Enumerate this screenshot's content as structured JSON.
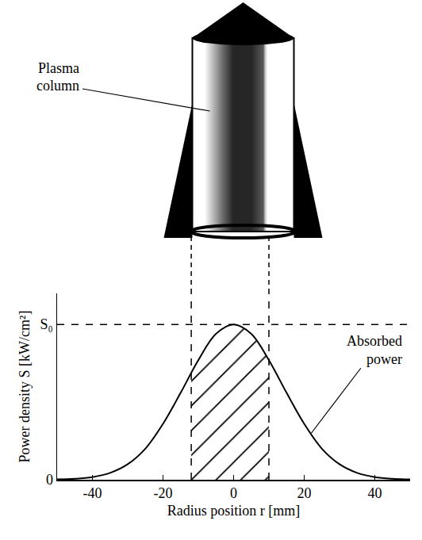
{
  "chart_data": {
    "type": "line",
    "series": [
      {
        "type": "line",
        "color": "#000000",
        "line_style": "solid",
        "x": [
          -50,
          -45,
          -40,
          -35,
          -30,
          -25,
          -20,
          -15,
          -10,
          -5,
          0,
          5,
          10,
          15,
          20,
          25,
          30,
          35,
          40,
          45,
          50
        ],
        "values": [
          0.002,
          0.006,
          0.017,
          0.044,
          0.1,
          0.2,
          0.36,
          0.56,
          0.77,
          0.94,
          1.0,
          0.94,
          0.77,
          0.56,
          0.36,
          0.2,
          0.1,
          0.044,
          0.017,
          0.006,
          0.002
        ]
      },
      {
        "type": "area",
        "color": "#000000",
        "x": [
          -12,
          -10,
          -5,
          0,
          5,
          10
        ],
        "values": [
          0.69,
          0.77,
          0.94,
          1.0,
          0.94,
          0.77
        ]
      }
    ],
    "xlim": [
      -50,
      50
    ],
    "xticks": [
      -40,
      -20,
      0,
      20,
      40
    ],
    "ylim": [
      0,
      1.2
    ],
    "yticks": [
      0,
      {
        "value": 1,
        "label": "S₀"
      }
    ],
    "x_label": "Radius position r [mm]",
    "y_label": "Power density S [kW/cm²]",
    "vlines": [
      -12,
      10
    ],
    "hlines": [
      1
    ],
    "annotations": [
      {
        "text": "Absorbed power",
        "x": 22,
        "y": 0.3
      }
    ],
    "grid": false
  },
  "diagram": {
    "label": "Plasma column"
  }
}
